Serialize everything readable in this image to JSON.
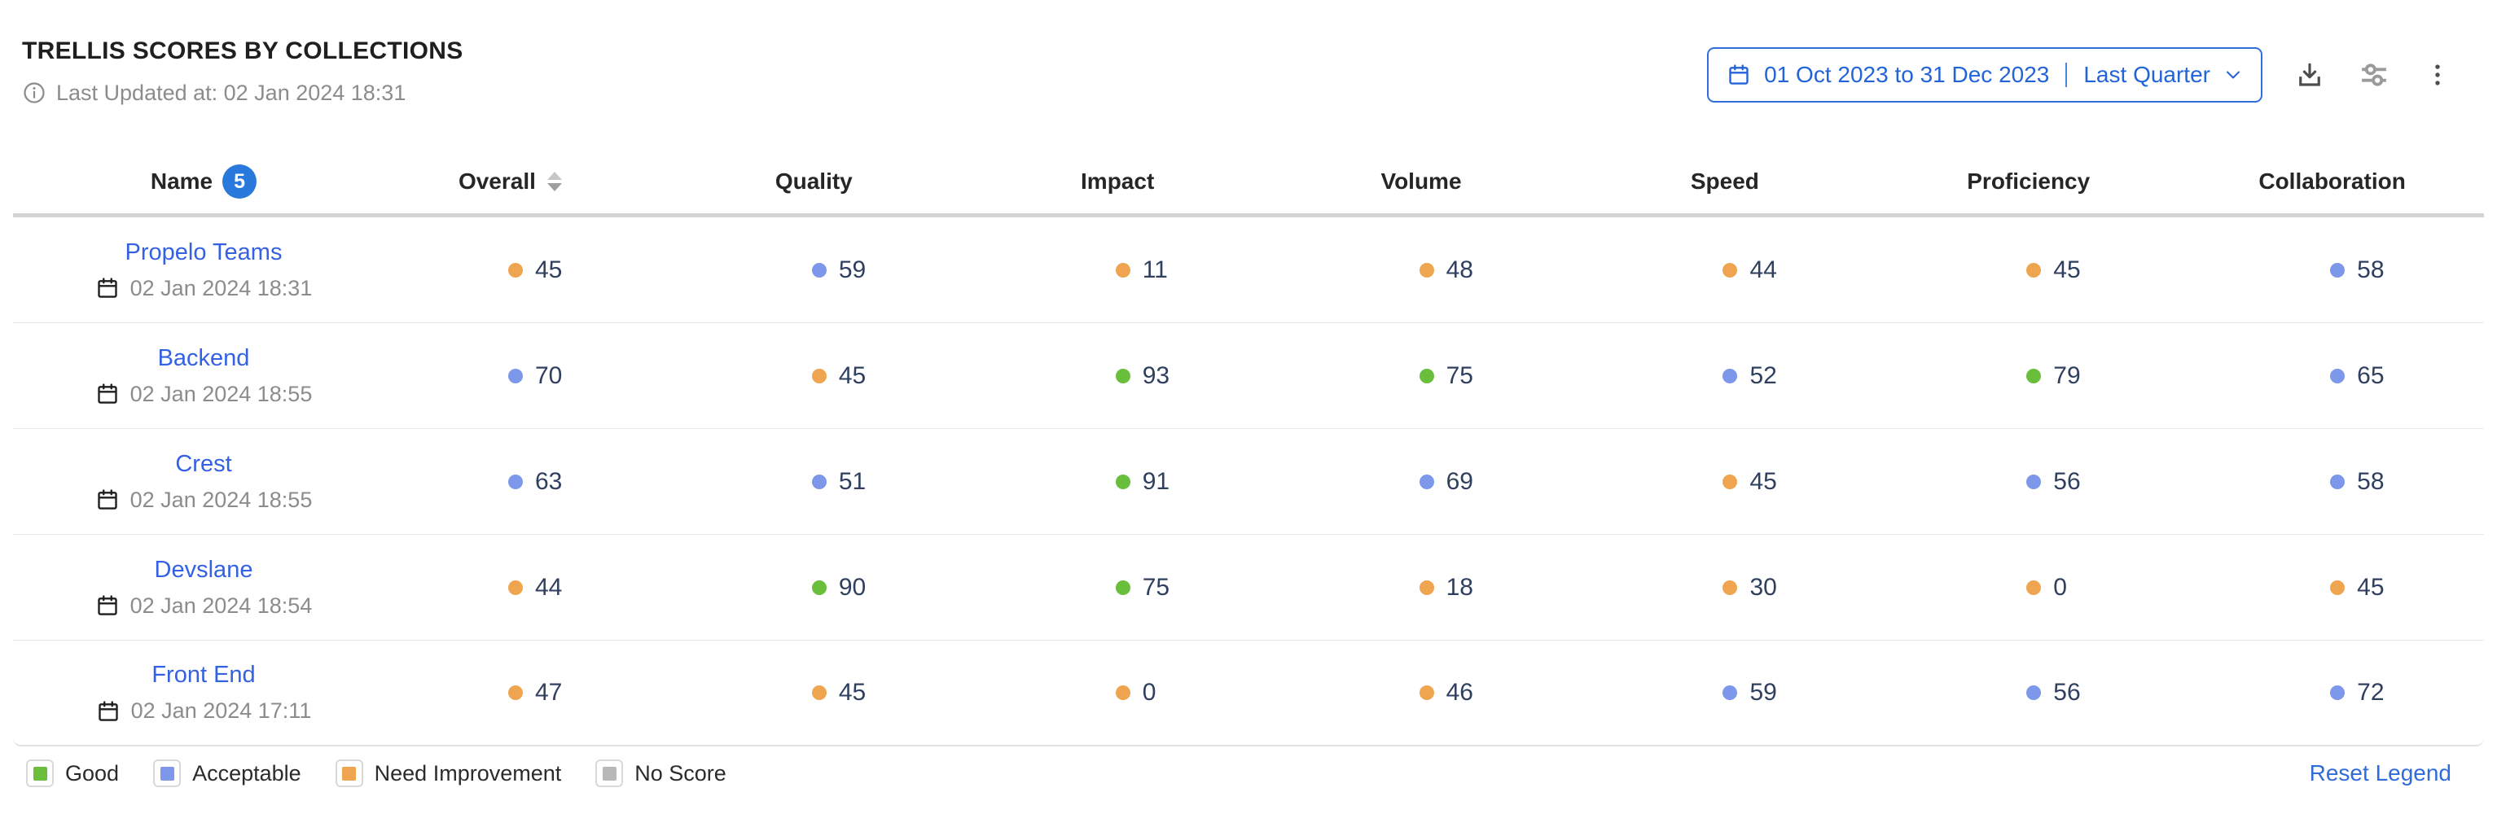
{
  "header": {
    "title": "TRELLIS SCORES BY COLLECTIONS",
    "last_updated": "Last Updated at: 02 Jan 2024 18:31",
    "date_range": {
      "label": "01 Oct 2023 to 31 Dec 2023",
      "preset": "Last Quarter"
    },
    "icons": [
      "info-icon",
      "calendar-icon",
      "chevron-down-icon",
      "download-icon",
      "sliders-icon",
      "kebab-menu-icon"
    ]
  },
  "table": {
    "columns": [
      "Name",
      "Overall",
      "Quality",
      "Impact",
      "Volume",
      "Speed",
      "Proficiency",
      "Collaboration"
    ],
    "name_badge_count": "5",
    "sorted_column": "Overall",
    "rows": [
      {
        "name": "Propelo Teams",
        "date": "02 Jan 2024 18:31",
        "scores": [
          {
            "v": "45",
            "c": "orange"
          },
          {
            "v": "59",
            "c": "blue"
          },
          {
            "v": "11",
            "c": "orange"
          },
          {
            "v": "48",
            "c": "orange"
          },
          {
            "v": "44",
            "c": "orange"
          },
          {
            "v": "45",
            "c": "orange"
          },
          {
            "v": "58",
            "c": "blue"
          }
        ]
      },
      {
        "name": "Backend",
        "date": "02 Jan 2024 18:55",
        "scores": [
          {
            "v": "70",
            "c": "blue"
          },
          {
            "v": "45",
            "c": "orange"
          },
          {
            "v": "93",
            "c": "green"
          },
          {
            "v": "75",
            "c": "green"
          },
          {
            "v": "52",
            "c": "blue"
          },
          {
            "v": "79",
            "c": "green"
          },
          {
            "v": "65",
            "c": "blue"
          }
        ]
      },
      {
        "name": "Crest",
        "date": "02 Jan 2024 18:55",
        "scores": [
          {
            "v": "63",
            "c": "blue"
          },
          {
            "v": "51",
            "c": "blue"
          },
          {
            "v": "91",
            "c": "green"
          },
          {
            "v": "69",
            "c": "blue"
          },
          {
            "v": "45",
            "c": "orange"
          },
          {
            "v": "56",
            "c": "blue"
          },
          {
            "v": "58",
            "c": "blue"
          }
        ]
      },
      {
        "name": "Devslane",
        "date": "02 Jan 2024 18:54",
        "scores": [
          {
            "v": "44",
            "c": "orange"
          },
          {
            "v": "90",
            "c": "green"
          },
          {
            "v": "75",
            "c": "green"
          },
          {
            "v": "18",
            "c": "orange"
          },
          {
            "v": "30",
            "c": "orange"
          },
          {
            "v": "0",
            "c": "orange"
          },
          {
            "v": "45",
            "c": "orange"
          }
        ]
      },
      {
        "name": "Front End",
        "date": "02 Jan 2024 17:11",
        "scores": [
          {
            "v": "47",
            "c": "orange"
          },
          {
            "v": "45",
            "c": "orange"
          },
          {
            "v": "0",
            "c": "orange"
          },
          {
            "v": "46",
            "c": "orange"
          },
          {
            "v": "59",
            "c": "blue"
          },
          {
            "v": "56",
            "c": "blue"
          },
          {
            "v": "72",
            "c": "blue"
          }
        ]
      }
    ]
  },
  "legend": {
    "items": [
      {
        "label": "Good",
        "color": "green"
      },
      {
        "label": "Acceptable",
        "color": "blue"
      },
      {
        "label": "Need Improvement",
        "color": "orange"
      },
      {
        "label": "No Score",
        "color": "gray"
      }
    ],
    "reset_label": "Reset Legend"
  },
  "colors": {
    "green": "#69be3b",
    "blue": "#7d97ea",
    "orange": "#efa44f",
    "gray": "#b8b8b8",
    "accent_blue": "#2363d8"
  }
}
